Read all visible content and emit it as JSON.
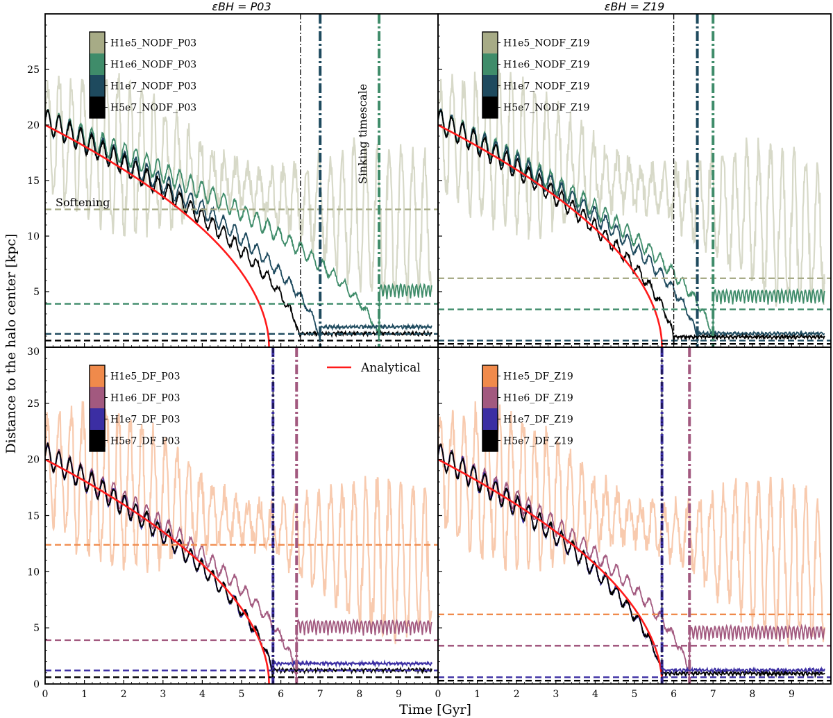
{
  "figure": {
    "ylabel": "Distance to the halo center [kpc]",
    "xlabel": "Time [Gyr]",
    "analytical_label": "Analytical",
    "softening_label": "Softening",
    "sinking_label": "Sinking timescale"
  },
  "chart_data": [
    {
      "type": "line",
      "panel": "top-left",
      "title": "εBH = P03",
      "xlim": [
        0,
        10
      ],
      "ylim": [
        0,
        30
      ],
      "xticks": [
        0,
        1,
        2,
        3,
        4,
        5,
        6,
        7,
        8,
        9
      ],
      "yticks": [
        0,
        5,
        10,
        15,
        20,
        25
      ],
      "legend_placement": "top-left",
      "series": [
        {
          "name": "H1e5_NODF_P03",
          "color": "#a7ab86",
          "softening": 12.4,
          "sinking_time": null
        },
        {
          "name": "H1e6_NODF_P03",
          "color": "#3f8c6a",
          "softening": 3.9,
          "sinking_time": 8.5
        },
        {
          "name": "H1e7_NODF_P03",
          "color": "#1e4a5e",
          "softening": 1.2,
          "sinking_time": 7.0
        },
        {
          "name": "H5e7_NODF_P03",
          "color": "#000000",
          "softening": 0.6,
          "sinking_time": 6.5
        }
      ],
      "analytical_end": 5.7
    },
    {
      "type": "line",
      "panel": "top-right",
      "title": "εBH = Z19",
      "xlim": [
        0,
        10
      ],
      "ylim": [
        0,
        30
      ],
      "xticks": [
        0,
        1,
        2,
        3,
        4,
        5,
        6,
        7,
        8,
        9
      ],
      "yticks": [
        0,
        5,
        10,
        15,
        20,
        25
      ],
      "legend_placement": "top-left",
      "series": [
        {
          "name": "H1e5_NODF_Z19",
          "color": "#a7ab86",
          "softening": 6.2,
          "sinking_time": null
        },
        {
          "name": "H1e6_NODF_Z19",
          "color": "#3f8c6a",
          "softening": 3.4,
          "sinking_time": 7.0
        },
        {
          "name": "H1e7_NODF_Z19",
          "color": "#1e4a5e",
          "softening": 0.6,
          "sinking_time": 6.6
        },
        {
          "name": "H5e7_NODF_Z19",
          "color": "#000000",
          "softening": 0.3,
          "sinking_time": 6.0
        }
      ],
      "analytical_end": 5.7
    },
    {
      "type": "line",
      "panel": "bottom-left",
      "title": "",
      "xlim": [
        0,
        10
      ],
      "ylim": [
        0,
        30
      ],
      "xticks": [
        0,
        1,
        2,
        3,
        4,
        5,
        6,
        7,
        8,
        9
      ],
      "yticks": [
        0,
        5,
        10,
        15,
        20,
        25
      ],
      "legend_placement": "top-left",
      "series": [
        {
          "name": "H1e5_DF_P03",
          "color": "#f08a4b",
          "softening": 12.4,
          "sinking_time": null
        },
        {
          "name": "H1e6_DF_P03",
          "color": "#a2597f",
          "softening": 3.9,
          "sinking_time": 6.4
        },
        {
          "name": "H1e7_DF_P03",
          "color": "#3b2ea3",
          "softening": 1.2,
          "sinking_time": 5.8
        },
        {
          "name": "H5e7_DF_P03",
          "color": "#000000",
          "softening": 0.6,
          "sinking_time": 5.8
        }
      ],
      "analytical_end": 5.7
    },
    {
      "type": "line",
      "panel": "bottom-right",
      "title": "",
      "xlim": [
        0,
        10
      ],
      "ylim": [
        0,
        30
      ],
      "xticks": [
        0,
        1,
        2,
        3,
        4,
        5,
        6,
        7,
        8,
        9
      ],
      "yticks": [
        0,
        5,
        10,
        15,
        20,
        25
      ],
      "legend_placement": "top-left",
      "series": [
        {
          "name": "H1e5_DF_Z19",
          "color": "#f08a4b",
          "softening": 6.2,
          "sinking_time": null
        },
        {
          "name": "H1e6_DF_Z19",
          "color": "#a2597f",
          "softening": 3.4,
          "sinking_time": 6.4
        },
        {
          "name": "H1e7_DF_Z19",
          "color": "#3b2ea3",
          "softening": 0.6,
          "sinking_time": 5.7
        },
        {
          "name": "H5e7_DF_Z19",
          "color": "#000000",
          "softening": 0.3,
          "sinking_time": 5.7
        }
      ],
      "analytical_end": 5.7
    }
  ]
}
